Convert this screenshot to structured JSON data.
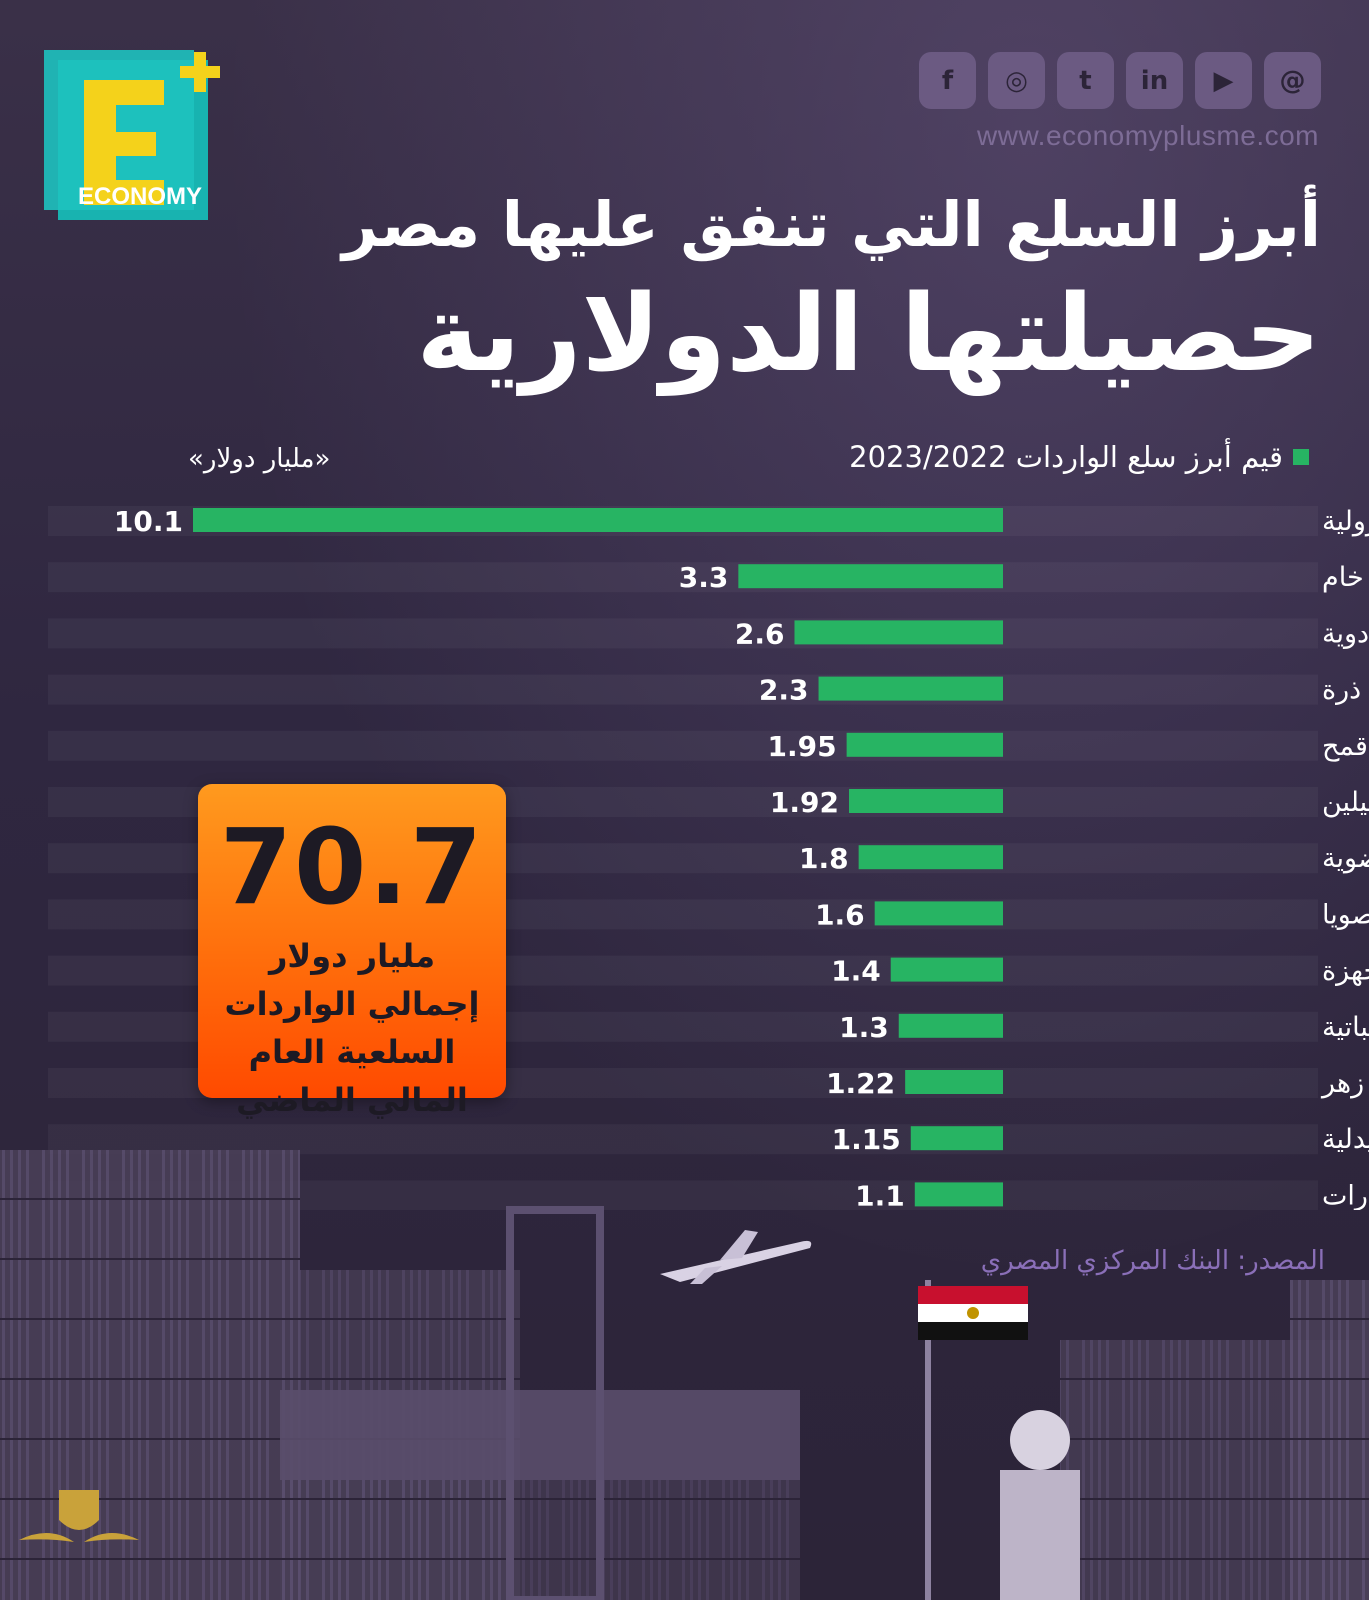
{
  "brand": {
    "logo_letter": "E",
    "logo_plus": "+",
    "logo_word": "ECONOMY"
  },
  "social_icons": [
    "facebook-icon",
    "instagram-icon",
    "twitter-icon",
    "linkedin-icon",
    "youtube-icon",
    "threads-icon"
  ],
  "social_glyphs": [
    "f",
    "◎",
    "t",
    "in",
    "▶",
    "@"
  ],
  "website": "www.economyplusme.com",
  "title_line1": "أبرز السلع التي تنفق عليها مصر",
  "title_line2": "حصيلتها الدولارية",
  "legend_label": "قيم أبرز سلع الواردات 2023/2022",
  "unit_label": "«مليار دولار»",
  "callout": {
    "value": "70.7",
    "text": "مليار دولار إجمالي الواردات السلعية العام المالي الماضي"
  },
  "source": "المصدر: البنك المركزي المصري",
  "colors": {
    "bar": "#27b463",
    "callout": "#ff6a0a",
    "background": "#2c2438"
  },
  "chart_data": {
    "type": "bar",
    "orientation": "horizontal",
    "categories": [
      "منتجات البترولية",
      "بترول خام",
      "أدوية",
      "ذرة",
      "قمح",
      "بوليميرات وبروبيلين",
      "مركبات عضوية وغير عضوية",
      "فول صويا",
      "قطع غيار وأجزاء آلات وأجهزة",
      "دهون وزيوت نباتية",
      "حديد صلب زهر",
      "محضرات صيدلية",
      "قطع غيار سيارات"
    ],
    "values": [
      10.1,
      3.3,
      2.6,
      2.3,
      1.95,
      1.92,
      1.8,
      1.6,
      1.4,
      1.3,
      1.22,
      1.15,
      1.1
    ],
    "value_labels": [
      "10.1",
      "3.3",
      "2.6",
      "2.3",
      "1.95",
      "1.92",
      "1.8",
      "1.6",
      "1.4",
      "1.3",
      "1.22",
      "1.15",
      "1.1"
    ],
    "xlim": [
      0,
      10.1
    ]
  }
}
